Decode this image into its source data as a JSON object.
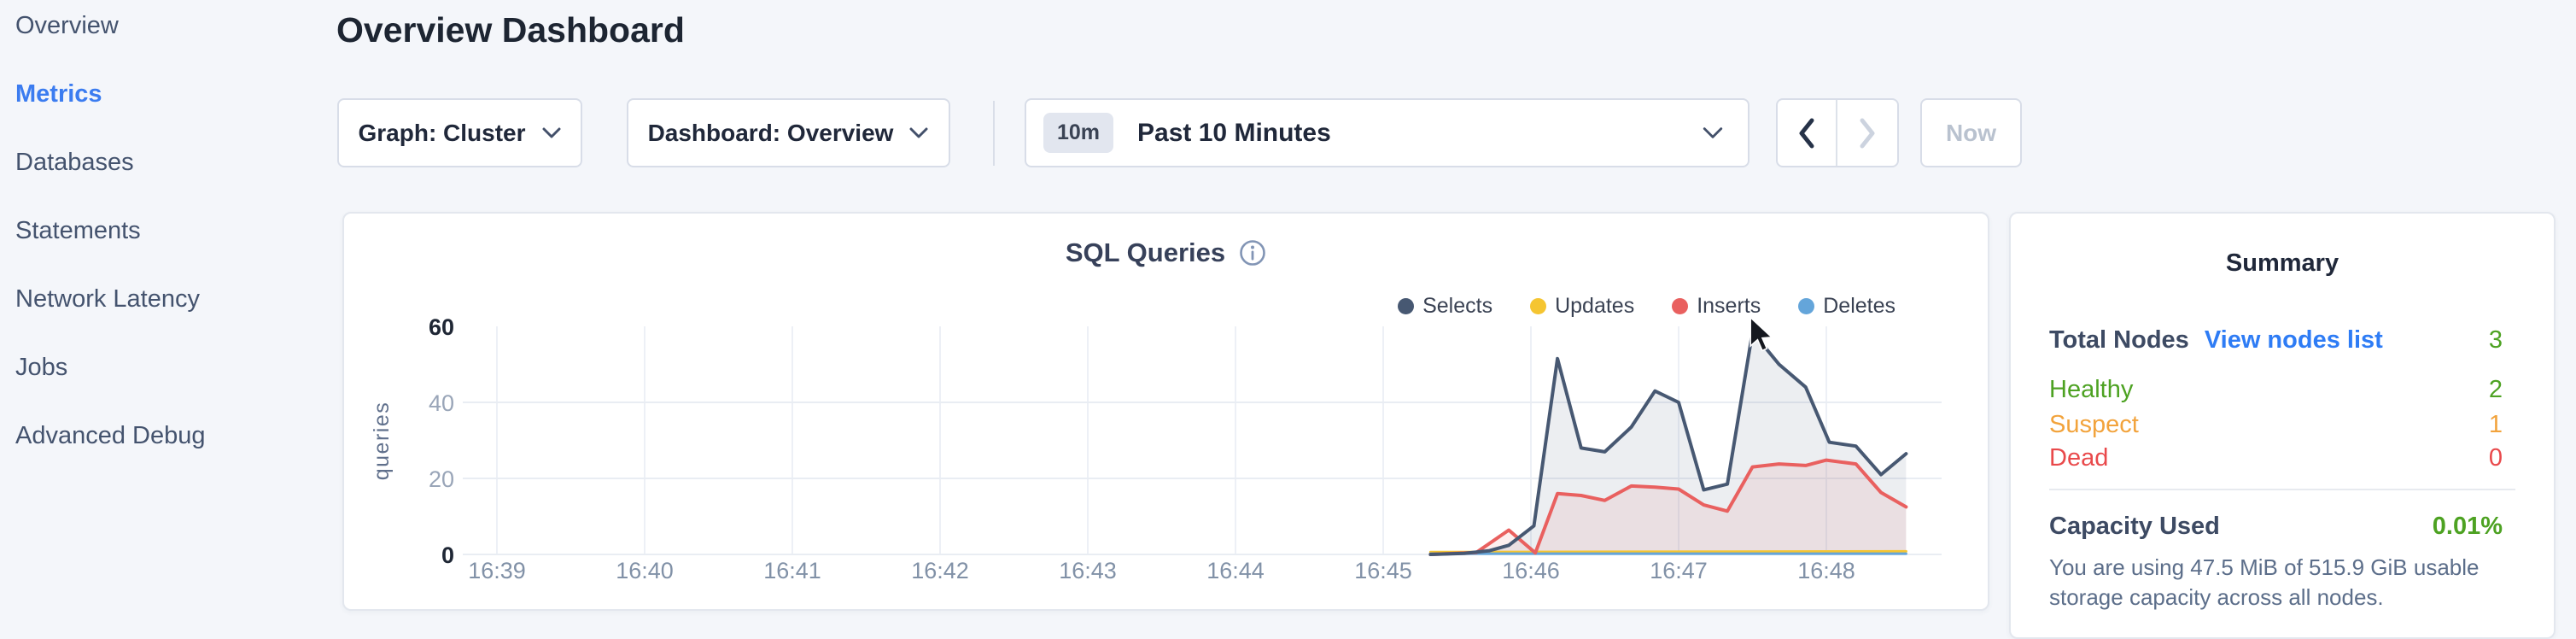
{
  "sidebar": {
    "items": [
      {
        "label": "Overview",
        "active": false
      },
      {
        "label": "Metrics",
        "active": true
      },
      {
        "label": "Databases",
        "active": false
      },
      {
        "label": "Statements",
        "active": false
      },
      {
        "label": "Network Latency",
        "active": false
      },
      {
        "label": "Jobs",
        "active": false
      },
      {
        "label": "Advanced Debug",
        "active": false
      }
    ]
  },
  "header": {
    "title": "Overview Dashboard"
  },
  "controls": {
    "graph_dropdown": "Graph: Cluster",
    "dashboard_dropdown": "Dashboard: Overview",
    "time_picker": {
      "badge": "10m",
      "label": "Past 10 Minutes"
    },
    "now_label": "Now"
  },
  "chart_data": {
    "type": "area",
    "title": "SQL Queries",
    "ylabel": "queries",
    "ylim": [
      0,
      60
    ],
    "grid": true,
    "legend_position": "top-right",
    "y_ticks": [
      {
        "v": 0,
        "bold": true
      },
      {
        "v": 20,
        "bold": false
      },
      {
        "v": 40,
        "bold": false
      },
      {
        "v": 60,
        "bold": true
      }
    ],
    "x_ticks": [
      {
        "label": "16:39",
        "t": 39
      },
      {
        "label": "16:40",
        "t": 40
      },
      {
        "label": "16:41",
        "t": 41
      },
      {
        "label": "16:42",
        "t": 42
      },
      {
        "label": "16:43",
        "t": 43
      },
      {
        "label": "16:44",
        "t": 44
      },
      {
        "label": "16:45",
        "t": 45
      },
      {
        "label": "16:46",
        "t": 46
      },
      {
        "label": "16:47",
        "t": 47
      },
      {
        "label": "16:48",
        "t": 48
      }
    ],
    "series": [
      {
        "name": "Updates",
        "color": "#f5c531",
        "fill": "rgba(245,197,49,0.08)",
        "width": 3,
        "points": [
          [
            45.32,
            0.6
          ],
          [
            48.54,
            0.8
          ]
        ]
      },
      {
        "name": "Deletes",
        "color": "#64a5da",
        "fill": "rgba(100,165,218,0.08)",
        "width": 3,
        "points": [
          [
            45.32,
            0.2
          ],
          [
            48.54,
            0.2
          ]
        ]
      },
      {
        "name": "Inserts",
        "color": "#e9605f",
        "fill": "rgba(233,96,95,0.10)",
        "width": 4,
        "points": [
          [
            45.32,
            0
          ],
          [
            45.63,
            0.5
          ],
          [
            45.85,
            6.4
          ],
          [
            46.03,
            0.4
          ],
          [
            46.18,
            16
          ],
          [
            46.34,
            15.5
          ],
          [
            46.5,
            14.2
          ],
          [
            46.68,
            18
          ],
          [
            46.84,
            17.7
          ],
          [
            47.0,
            17.2
          ],
          [
            47.17,
            13
          ],
          [
            47.33,
            11.4
          ],
          [
            47.5,
            23
          ],
          [
            47.68,
            23.8
          ],
          [
            47.86,
            23.4
          ],
          [
            48.0,
            24.8
          ],
          [
            48.2,
            23.8
          ],
          [
            48.37,
            16.3
          ],
          [
            48.54,
            12.5
          ]
        ]
      },
      {
        "name": "Selects",
        "color": "#475872",
        "fill": "rgba(71,88,114,0.10)",
        "width": 4,
        "points": [
          [
            45.32,
            0
          ],
          [
            45.55,
            0.3
          ],
          [
            45.72,
            1
          ],
          [
            45.85,
            2.4
          ],
          [
            46.02,
            7.5
          ],
          [
            46.18,
            51.5
          ],
          [
            46.34,
            28
          ],
          [
            46.5,
            27
          ],
          [
            46.68,
            33.5
          ],
          [
            46.84,
            43
          ],
          [
            47.0,
            40
          ],
          [
            47.17,
            17
          ],
          [
            47.33,
            18.5
          ],
          [
            47.5,
            58.5
          ],
          [
            47.68,
            50
          ],
          [
            47.86,
            44
          ],
          [
            48.02,
            29.5
          ],
          [
            48.2,
            28.5
          ],
          [
            48.37,
            21
          ],
          [
            48.54,
            26.5
          ]
        ]
      }
    ],
    "legend_order": [
      "Selects",
      "Updates",
      "Inserts",
      "Deletes"
    ]
  },
  "summary": {
    "title": "Summary",
    "total_nodes": {
      "label": "Total Nodes",
      "link": "View nodes list",
      "value": "3"
    },
    "healthy": {
      "label": "Healthy",
      "value": "2"
    },
    "suspect": {
      "label": "Suspect",
      "value": "1"
    },
    "dead": {
      "label": "Dead",
      "value": "0"
    },
    "capacity": {
      "label": "Capacity Used",
      "value": "0.01%",
      "description": "You are using 47.5 MiB of 515.9 GiB usable storage capacity across all nodes."
    }
  }
}
